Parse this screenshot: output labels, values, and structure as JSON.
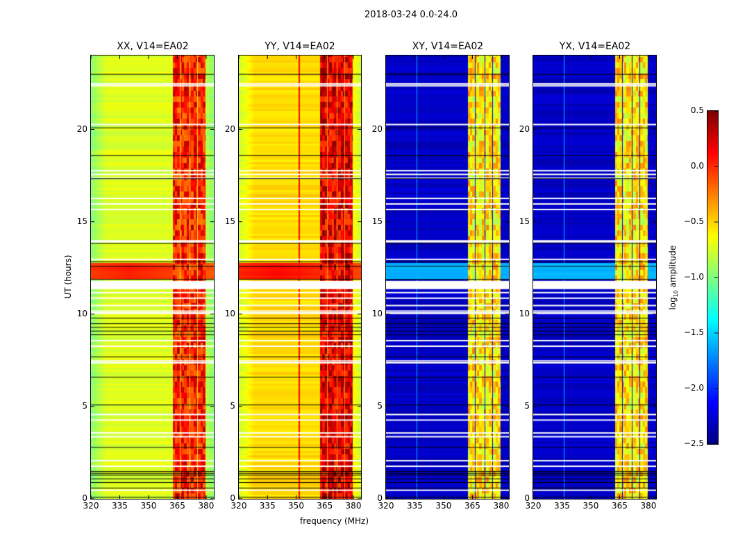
{
  "chart_data": {
    "type": "heatmap",
    "title": "2018-03-24 0.0-24.0",
    "xlabel": "frequency (MHz)",
    "ylabel": "UT (hours)",
    "xlim": [
      320,
      384
    ],
    "ylim": [
      0,
      24
    ],
    "xticks": [
      320,
      335,
      350,
      365,
      380
    ],
    "yticks": [
      0,
      5,
      10,
      15,
      20
    ],
    "colormap": "jet",
    "colorbar": {
      "label": "log10 amplitude",
      "label_base": "log",
      "label_sub": "10",
      "label_rest": " amplitude",
      "vmin": -2.5,
      "vmax": 0.5,
      "ticks": [
        "0.5",
        "0.0",
        "−0.5",
        "−1.0",
        "−1.5",
        "−2.0",
        "−2.5"
      ],
      "tick_values": [
        0.5,
        0.0,
        -0.5,
        -1.0,
        -1.5,
        -2.0,
        -2.5
      ]
    },
    "panels": [
      {
        "name": "XX, V14=EA02",
        "baseline": -0.72,
        "rfi_level": -0.15,
        "event_level": 0.05,
        "rfi_gap": false,
        "spike_freq": null
      },
      {
        "name": "YY, V14=EA02",
        "baseline": -0.52,
        "rfi_level": 0.0,
        "event_level": 0.1,
        "rfi_gap": false,
        "spike_freq": 351.5
      },
      {
        "name": "XY, V14=EA02",
        "baseline": -2.3,
        "rfi_level": -0.75,
        "event_level": -1.6,
        "rfi_gap": true,
        "spike_freq": 336
      },
      {
        "name": "YX, V14=EA02",
        "baseline": -2.3,
        "rfi_level": -0.75,
        "event_level": -1.6,
        "rfi_gap": true,
        "spike_freq": 336
      }
    ],
    "rfi_bands_mhz": [
      [
        362.5,
        366
      ],
      [
        366.5,
        371
      ],
      [
        371.5,
        375
      ],
      [
        375.5,
        379.5
      ]
    ],
    "event_window_hours": [
      11.9,
      12.8
    ],
    "flagged_hours_white": [
      22.5,
      22.4,
      20.3,
      17.8,
      17.6,
      17.4,
      16.3,
      16.0,
      15.7,
      14.0,
      13.95,
      13.0,
      11.8,
      11.6,
      11.5,
      11.2,
      10.9,
      10.5,
      10.2,
      8.6,
      8.3,
      7.5,
      7.4,
      4.6,
      4.3,
      3.6,
      3.4,
      2.1,
      1.8,
      0.5
    ],
    "flagged_band_white": [
      [
        11.35,
        11.75
      ],
      [
        10.0,
        10.1
      ]
    ],
    "black_lines_hours": [
      23.0,
      20.1,
      18.6,
      17.35,
      13.85,
      12.85,
      12.6,
      11.9,
      9.8,
      9.5,
      9.3,
      9.1,
      8.9,
      7.7,
      6.6,
      5.1,
      2.8,
      1.5,
      1.4,
      1.3,
      1.1,
      0.9,
      0.6,
      0.1
    ]
  }
}
